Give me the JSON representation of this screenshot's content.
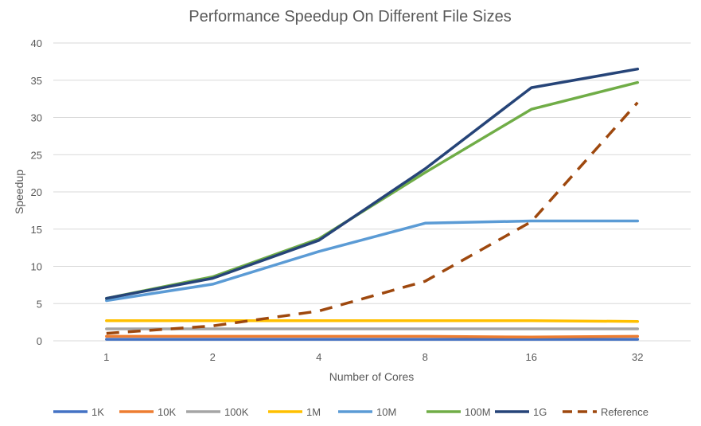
{
  "chart_data": {
    "type": "line",
    "title": "Performance Speedup On Different File Sizes",
    "xlabel": "Number of Cores",
    "ylabel": "Speedup",
    "categories": [
      "1",
      "2",
      "4",
      "8",
      "16",
      "32"
    ],
    "ylim": [
      0,
      40
    ],
    "yticks": [
      0,
      5,
      10,
      15,
      20,
      25,
      30,
      35,
      40
    ],
    "grid": true,
    "legend_position": "bottom",
    "series": [
      {
        "name": "1K",
        "color": "#4472c4",
        "dashed": false,
        "values": [
          0.2,
          0.2,
          0.2,
          0.2,
          0.2,
          0.2
        ]
      },
      {
        "name": "10K",
        "color": "#ed7d31",
        "dashed": false,
        "values": [
          0.6,
          0.6,
          0.6,
          0.6,
          0.5,
          0.6
        ]
      },
      {
        "name": "100K",
        "color": "#a5a5a5",
        "dashed": false,
        "values": [
          1.6,
          1.6,
          1.6,
          1.6,
          1.6,
          1.6
        ]
      },
      {
        "name": "1M",
        "color": "#ffc000",
        "dashed": false,
        "values": [
          2.7,
          2.7,
          2.7,
          2.7,
          2.7,
          2.6
        ]
      },
      {
        "name": "10M",
        "color": "#5b9bd5",
        "dashed": false,
        "values": [
          5.4,
          7.6,
          12.0,
          15.8,
          16.1,
          16.1
        ]
      },
      {
        "name": "100M",
        "color": "#70ad47",
        "dashed": false,
        "values": [
          5.7,
          8.6,
          13.7,
          22.6,
          31.1,
          34.7
        ]
      },
      {
        "name": "1G",
        "color": "#264478",
        "dashed": false,
        "values": [
          5.7,
          8.4,
          13.5,
          23.1,
          34.0,
          36.5
        ]
      },
      {
        "name": "Reference",
        "color": "#9e480e",
        "dashed": true,
        "values": [
          1,
          2,
          4,
          8,
          16,
          32
        ]
      }
    ]
  }
}
